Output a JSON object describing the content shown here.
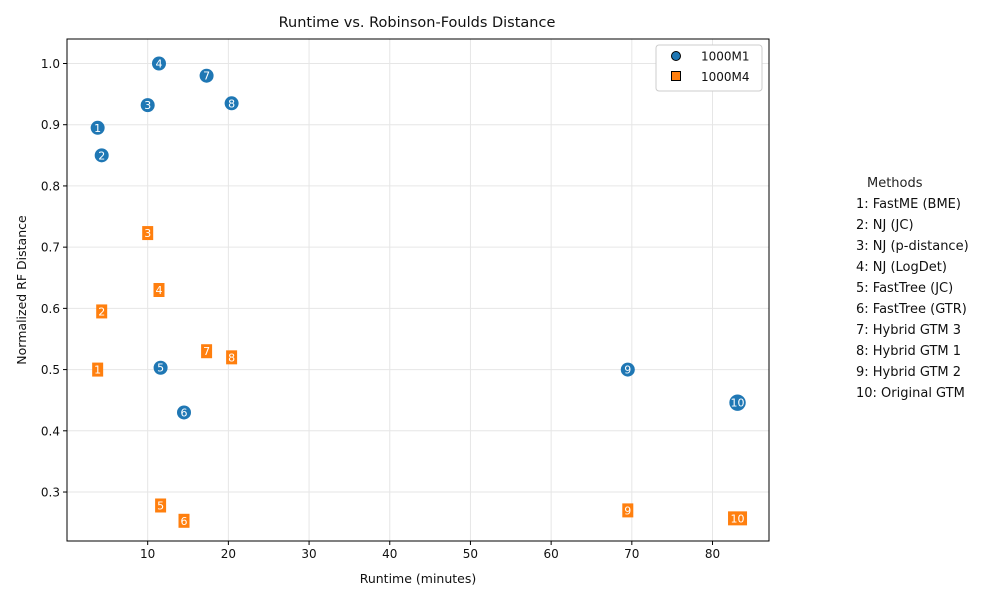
{
  "chart_data": {
    "type": "scatter",
    "title": "Runtime vs. Robinson-Foulds Distance",
    "xlabel": "Runtime (minutes)",
    "ylabel": "Normalized RF Distance",
    "xlim": [
      0,
      87
    ],
    "ylim": [
      0.22,
      1.04
    ],
    "xticks": [
      10,
      20,
      30,
      40,
      50,
      60,
      70,
      80
    ],
    "yticks": [
      0.3,
      0.4,
      0.5,
      0.6,
      0.7,
      0.8,
      0.9,
      1.0
    ],
    "xtick_labels": [
      "10",
      "20",
      "30",
      "40",
      "50",
      "60",
      "70",
      "80"
    ],
    "ytick_labels": [
      "0.3",
      "0.4",
      "0.5",
      "0.6",
      "0.7",
      "0.8",
      "0.9",
      "1.0"
    ],
    "grid": true,
    "legend_position": "top-right",
    "series": [
      {
        "name": "1000M1",
        "marker": "circle",
        "color": "#1f77b4",
        "points": [
          {
            "label": "1",
            "x": 3.8,
            "y": 0.895
          },
          {
            "label": "2",
            "x": 4.3,
            "y": 0.85
          },
          {
            "label": "3",
            "x": 10.0,
            "y": 0.932
          },
          {
            "label": "4",
            "x": 11.4,
            "y": 1.0
          },
          {
            "label": "5",
            "x": 11.6,
            "y": 0.503
          },
          {
            "label": "6",
            "x": 14.5,
            "y": 0.43
          },
          {
            "label": "7",
            "x": 17.3,
            "y": 0.98
          },
          {
            "label": "8",
            "x": 20.4,
            "y": 0.935
          },
          {
            "label": "9",
            "x": 69.5,
            "y": 0.5
          },
          {
            "label": "10",
            "x": 83.1,
            "y": 0.446
          }
        ]
      },
      {
        "name": "1000M4",
        "marker": "square",
        "color": "#ff7f0e",
        "points": [
          {
            "label": "1",
            "x": 3.8,
            "y": 0.5
          },
          {
            "label": "2",
            "x": 4.3,
            "y": 0.595
          },
          {
            "label": "3",
            "x": 10.0,
            "y": 0.723
          },
          {
            "label": "4",
            "x": 11.4,
            "y": 0.63
          },
          {
            "label": "5",
            "x": 11.6,
            "y": 0.278
          },
          {
            "label": "6",
            "x": 14.5,
            "y": 0.253
          },
          {
            "label": "7",
            "x": 17.3,
            "y": 0.53
          },
          {
            "label": "8",
            "x": 20.4,
            "y": 0.52
          },
          {
            "label": "9",
            "x": 69.5,
            "y": 0.27
          },
          {
            "label": "10",
            "x": 83.1,
            "y": 0.257
          }
        ]
      }
    ]
  },
  "methods": {
    "title": "Methods",
    "items": [
      "1: FastME (BME)",
      "2: NJ (JC)",
      "3: NJ (p-distance)",
      "4: NJ (LogDet)",
      "5: FastTree (JC)",
      "6: FastTree (GTR)",
      "7: Hybrid GTM 3",
      "8: Hybrid GTM 1",
      "9: Hybrid GTM 2",
      "10: Original GTM"
    ]
  }
}
